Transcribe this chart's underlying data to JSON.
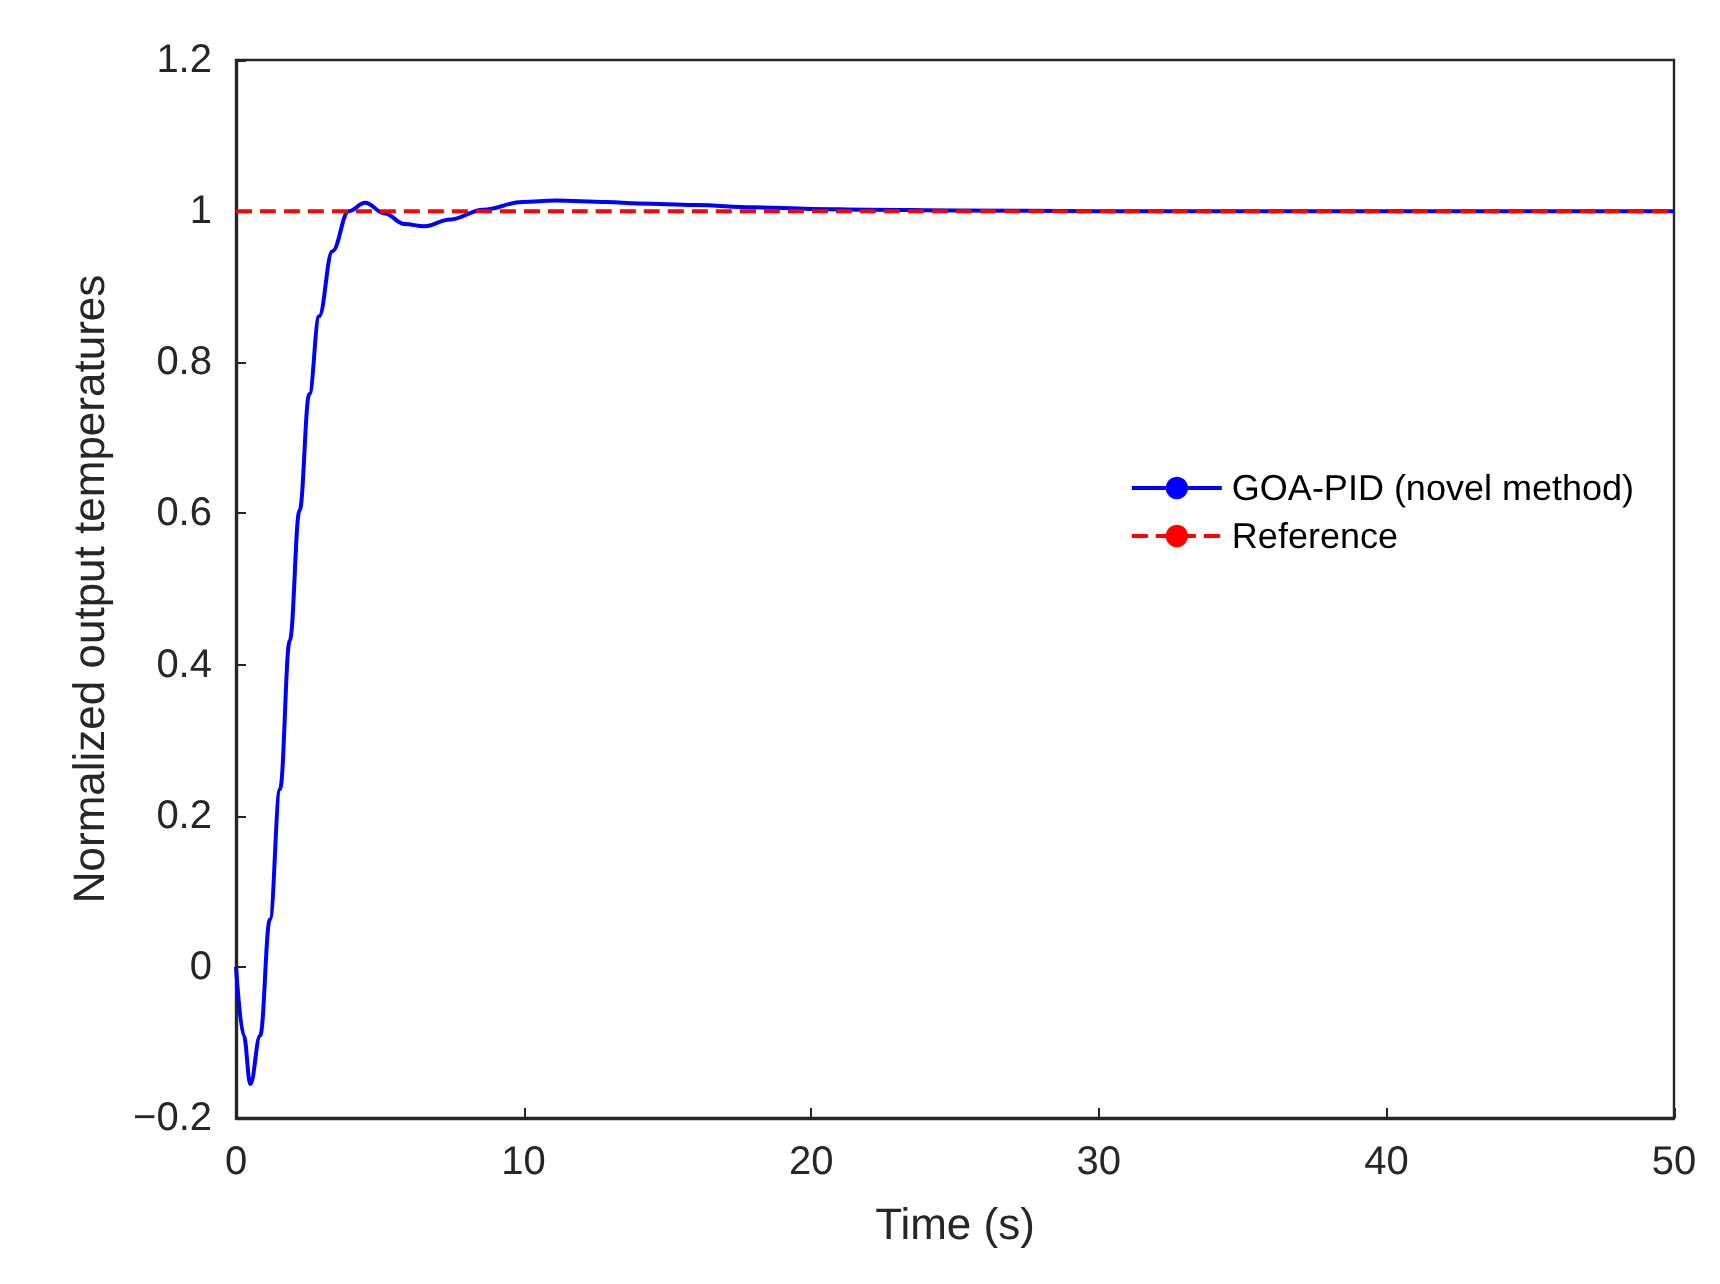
{
  "chart_data": {
    "type": "line",
    "xlabel": "Time (s)",
    "ylabel": "Normalized output temperatures",
    "xlim": [
      0,
      50
    ],
    "xticks": [
      0,
      10,
      20,
      30,
      40,
      50
    ],
    "ylim": [
      -0.2,
      1.2
    ],
    "yticks": [
      -0.2,
      0,
      0.2,
      0.4,
      0.6,
      0.8,
      1,
      1.2
    ],
    "legend": "right",
    "grid": false,
    "series": [
      {
        "name": "GOA-PID (novel method)",
        "color": "#0000ff",
        "line_style": "solid",
        "x": [
          0,
          0.27,
          0.5,
          0.84,
          1.18,
          1.53,
          1.87,
          2.21,
          2.55,
          2.89,
          3.35,
          3.92,
          4.49,
          5.17,
          5.86,
          6.54,
          7.45,
          8.59,
          9.96,
          11.1,
          12.9,
          14,
          16,
          18,
          20,
          22,
          25,
          30,
          40,
          50
        ],
        "values": [
          0,
          -0.091,
          -0.155,
          -0.091,
          0.063,
          0.235,
          0.432,
          0.604,
          0.758,
          0.861,
          0.947,
          1.0,
          1.011,
          0.997,
          0.983,
          0.98,
          0.989,
          1.002,
          1.012,
          1.014,
          1.012,
          1.01,
          1.008,
          1.005,
          1.003,
          1.002,
          1.001,
          1,
          1,
          1
        ]
      },
      {
        "name": "Reference",
        "color": "#ff0000",
        "line_style": "dashed",
        "x": [
          0,
          50
        ],
        "values": [
          1,
          1
        ]
      }
    ]
  }
}
